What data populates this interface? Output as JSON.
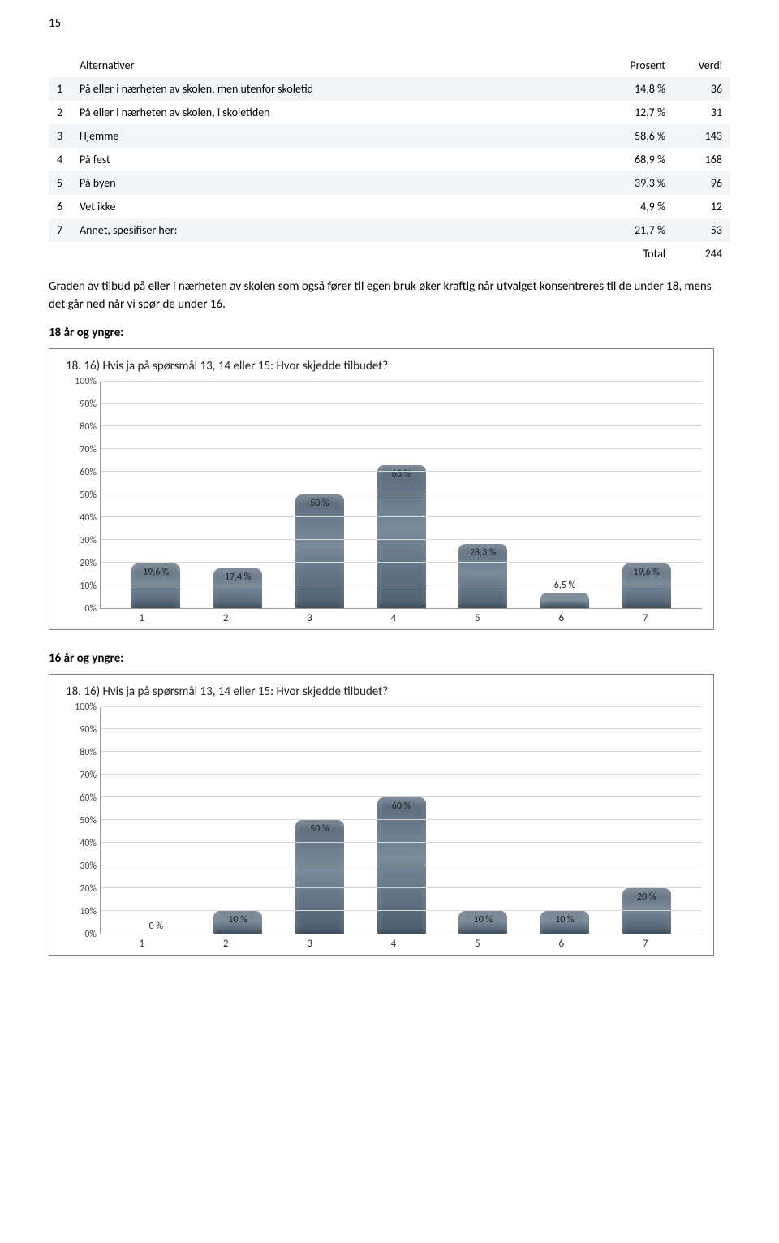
{
  "page_number": "15",
  "table": {
    "headers": [
      "Alternativer",
      "Prosent",
      "Verdi"
    ],
    "rows": [
      {
        "idx": "1",
        "label": "På eller i nærheten av skolen, men utenfor skoletid",
        "pct": "14,8 %",
        "val": "36",
        "shade": "odd"
      },
      {
        "idx": "2",
        "label": "På eller i nærheten av skolen, i skoletiden",
        "pct": "12,7 %",
        "val": "31",
        "shade": "even"
      },
      {
        "idx": "3",
        "label": "Hjemme",
        "pct": "58,6 %",
        "val": "143",
        "shade": "odd"
      },
      {
        "idx": "4",
        "label": "På fest",
        "pct": "68,9 %",
        "val": "168",
        "shade": "even"
      },
      {
        "idx": "5",
        "label": "På byen",
        "pct": "39,3 %",
        "val": "96",
        "shade": "odd"
      },
      {
        "idx": "6",
        "label": "Vet ikke",
        "pct": "4,9 %",
        "val": "12",
        "shade": "even"
      },
      {
        "idx": "7",
        "label": "Annet, spesifiser her:",
        "pct": "21,7 %",
        "val": "53",
        "shade": "odd"
      }
    ],
    "total_label": "Total",
    "total_val": "244"
  },
  "paragraph": "Graden av tilbud på eller i nærheten av skolen som også fører til egen bruk øker kraftig når utvalget konsentreres til de under 18, mens det går ned når vi spør de under 16.",
  "heading_18": "18 år og yngre:",
  "heading_16": "16 år og yngre:",
  "chart": {
    "title": "18. 16) Hvis ja på spørsmål 13, 14 eller 15: Hvor skjedde tilbudet?",
    "y_ticks": [
      "0%",
      "10%",
      "20%",
      "30%",
      "40%",
      "50%",
      "60%",
      "70%",
      "80%",
      "90%",
      "100%"
    ],
    "x_ticks": [
      "1",
      "2",
      "3",
      "4",
      "5",
      "6",
      "7"
    ],
    "colors": {
      "bar_gradient_top": "#7a8b9a",
      "bar_gradient_bottom": "#4d5f6e",
      "grid": "#d9d9d9",
      "border": "#808080"
    }
  },
  "chart_18": {
    "values": [
      19.6,
      17.4,
      50,
      63,
      28.3,
      6.5,
      19.6
    ],
    "labels": [
      "19,6 %",
      "17,4 %",
      "50 %",
      "63 %",
      "28,3 %",
      "6,5 %",
      "19,6 %"
    ]
  },
  "chart_16": {
    "values": [
      0,
      10,
      50,
      60,
      10,
      10,
      20
    ],
    "labels": [
      "0 %",
      "10 %",
      "50 %",
      "60 %",
      "10 %",
      "10 %",
      "20 %"
    ]
  }
}
